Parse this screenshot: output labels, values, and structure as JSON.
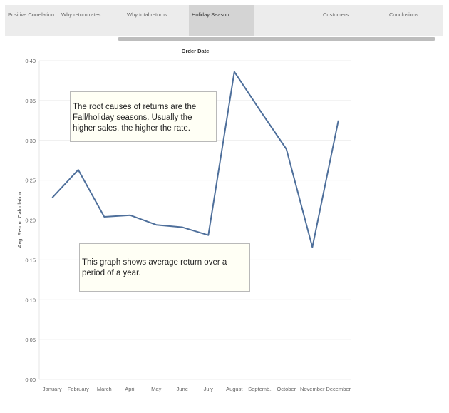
{
  "tabs": [
    {
      "label": "Positive Correlation",
      "active": false
    },
    {
      "label": "Why return rates",
      "active": false
    },
    {
      "label": "Why total returns",
      "active": false
    },
    {
      "label": "Holiday Season",
      "active": true
    },
    {
      "label": "",
      "active": false
    },
    {
      "label": "Customers",
      "active": false
    },
    {
      "label": "Conclusions",
      "active": false
    }
  ],
  "annotations": {
    "root_cause": "The root causes of returns are the Fall/holiday seasons. Usually the higher sales, the higher the rate.",
    "description": "This graph shows average return over a period of a year."
  },
  "colors": {
    "line": "#4e6f9b",
    "grid": "#ececec",
    "active_tab": "#d4d4d4"
  },
  "chart_data": {
    "type": "line",
    "title": "Order Date",
    "xlabel": "",
    "ylabel": "Avg. Return Calculation",
    "categories": [
      "January",
      "February",
      "March",
      "April",
      "May",
      "June",
      "July",
      "August",
      "Septemb..",
      "October",
      "November",
      "December"
    ],
    "series": [
      {
        "values": [
          0.228,
          0.263,
          0.204,
          0.206,
          0.194,
          0.191,
          0.181,
          0.386,
          0.337,
          0.289,
          0.166,
          0.325
        ]
      }
    ],
    "ylim": [
      0,
      0.4
    ],
    "yticks": [
      "0.00",
      "0.05",
      "0.10",
      "0.15",
      "0.20",
      "0.25",
      "0.30",
      "0.35",
      "0.40"
    ],
    "grid": true,
    "legend": "none"
  }
}
